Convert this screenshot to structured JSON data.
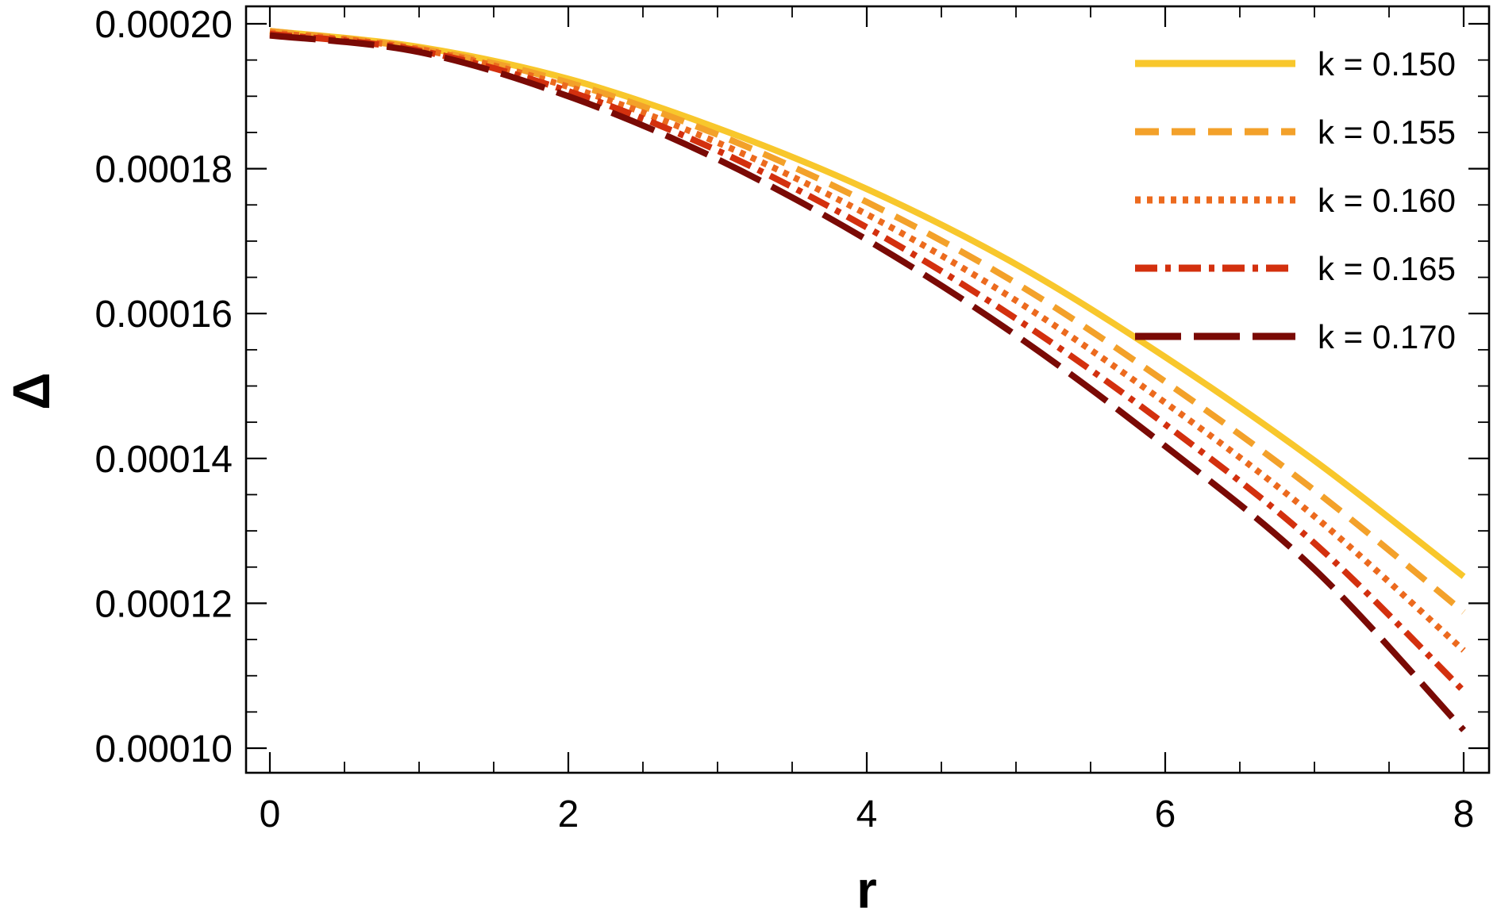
{
  "chart_data": {
    "type": "line",
    "title": "",
    "xlabel": "r",
    "ylabel": "Δ",
    "xlim": [
      0,
      8
    ],
    "ylim": [
      0.0001,
      0.000201
    ],
    "x_ticks": [
      0,
      2,
      4,
      6,
      8
    ],
    "x_tick_labels": [
      "0",
      "2",
      "4",
      "6",
      "8"
    ],
    "y_ticks": [
      0.0001,
      0.00012,
      0.00014,
      0.00016,
      0.00018,
      0.0002
    ],
    "y_tick_labels": [
      "0.00010",
      "0.00012",
      "0.00014",
      "0.00016",
      "0.00018",
      "0.00020"
    ],
    "grid": false,
    "legend_position": "top-right",
    "x": [
      0,
      1,
      2,
      3,
      4,
      5,
      6,
      7,
      8
    ],
    "series": [
      {
        "name": "k = 0.150",
        "color": "#f8c72c",
        "line_style": "solid",
        "values": [
          0.000199,
          0.0001968,
          0.0001924,
          0.0001856,
          0.0001772,
          0.0001668,
          0.000154,
          0.0001397,
          0.0001237
        ]
      },
      {
        "name": "k = 0.155",
        "color": "#f3a12a",
        "line_style": "dashed",
        "values": [
          0.000199,
          0.0001966,
          0.0001919,
          0.0001847,
          0.0001754,
          0.0001642,
          0.0001506,
          0.0001356,
          0.0001188
        ]
      },
      {
        "name": "k = 0.160",
        "color": "#ec6a1e",
        "line_style": "dotted",
        "values": [
          0.0001988,
          0.0001965,
          0.0001913,
          0.0001836,
          0.0001737,
          0.0001618,
          0.0001477,
          0.000132,
          0.0001135
        ]
      },
      {
        "name": "k = 0.165",
        "color": "#d3300e",
        "line_style": "dash-dot",
        "values": [
          0.0001986,
          0.0001963,
          0.0001907,
          0.0001825,
          0.0001719,
          0.0001593,
          0.0001447,
          0.0001283,
          0.0001079
        ]
      },
      {
        "name": "k = 0.170",
        "color": "#7a0a05",
        "line_style": "long-dashed",
        "values": [
          0.0001984,
          0.0001961,
          0.00019,
          0.0001813,
          0.0001702,
          0.000157,
          0.0001417,
          0.0001247,
          0.0001025
        ]
      }
    ]
  }
}
